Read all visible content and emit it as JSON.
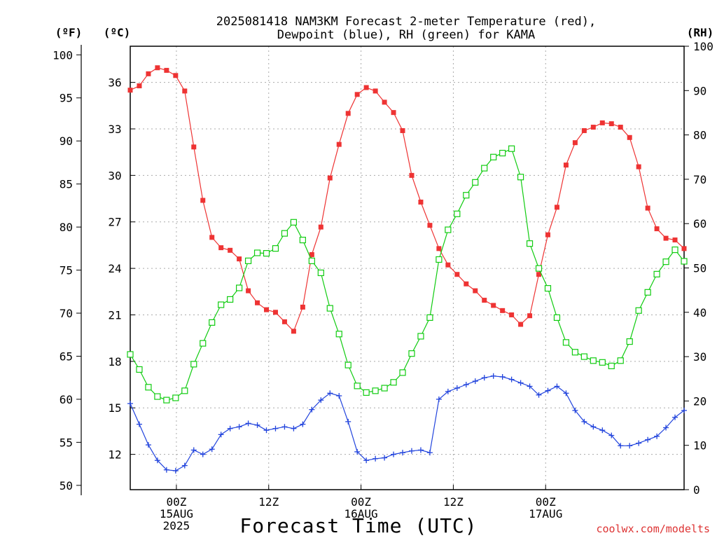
{
  "chart_data": {
    "type": "line",
    "title_line1": "2025081418 NAM3KM Forecast 2-meter Temperature (red),",
    "title_line2": "Dewpoint (blue), RH (green) for KAMA",
    "xlabel": "Forecast Time (UTC)",
    "watermark": "coolwx.com/modelts",
    "axis_units": {
      "f": "(ºF)",
      "c": "(ºC)",
      "rh": "(RH)"
    },
    "x_range_hours": [
      0,
      72
    ],
    "x_ticks": [
      {
        "hour": 6,
        "lines": [
          "00Z",
          "15AUG",
          "2025"
        ]
      },
      {
        "hour": 18,
        "lines": [
          "12Z"
        ]
      },
      {
        "hour": 30,
        "lines": [
          "00Z",
          "16AUG"
        ]
      },
      {
        "hour": 42,
        "lines": [
          "12Z"
        ]
      },
      {
        "hour": 54,
        "lines": [
          "00Z",
          "17AUG"
        ]
      }
    ],
    "y_left_f": {
      "range": [
        49.5,
        101
      ],
      "ticks": [
        50,
        55,
        60,
        65,
        70,
        75,
        80,
        85,
        90,
        95,
        100
      ]
    },
    "y_left_c": {
      "ticks": [
        12,
        15,
        18,
        21,
        24,
        27,
        30,
        33,
        36
      ]
    },
    "y_right_rh": {
      "range": [
        0,
        100
      ],
      "ticks": [
        0,
        10,
        20,
        30,
        40,
        50,
        60,
        70,
        80,
        90,
        100
      ]
    },
    "grid": true,
    "series": [
      {
        "name": "2-meter Temperature (red)",
        "unit": "F",
        "color": "#ee3333",
        "marker": "filled-square",
        "values": [
          95.9,
          96.4,
          97.8,
          98.5,
          98.2,
          97.6,
          95.8,
          89.3,
          83.1,
          78.8,
          77.6,
          77.3,
          76.3,
          72.6,
          71.2,
          70.4,
          70.1,
          69.0,
          67.9,
          70.7,
          76.8,
          80.0,
          85.7,
          89.6,
          93.2,
          95.4,
          96.2,
          95.8,
          94.5,
          93.3,
          91.2,
          86.0,
          82.9,
          80.2,
          77.5,
          75.6,
          74.5,
          73.4,
          72.6,
          71.5,
          70.9,
          70.3,
          69.8,
          68.7,
          69.7,
          74.5,
          79.1,
          82.3,
          87.2,
          89.8,
          91.2,
          91.6,
          92.1,
          92.0,
          91.6,
          90.4,
          87.0,
          82.2,
          79.8,
          78.7,
          78.5,
          77.5
        ]
      },
      {
        "name": "Dewpoint (blue)",
        "unit": "F",
        "color": "#2244dd",
        "marker": "plus",
        "values": [
          59.5,
          57.1,
          54.7,
          52.9,
          51.8,
          51.7,
          52.3,
          54.1,
          53.6,
          54.2,
          55.9,
          56.6,
          56.8,
          57.2,
          57.0,
          56.4,
          56.6,
          56.8,
          56.6,
          57.1,
          58.8,
          59.9,
          60.7,
          60.4,
          57.4,
          53.9,
          52.9,
          53.1,
          53.2,
          53.6,
          53.8,
          54.0,
          54.1,
          53.8,
          60.0,
          60.9,
          61.3,
          61.7,
          62.1,
          62.5,
          62.7,
          62.6,
          62.3,
          61.9,
          61.5,
          60.5,
          61.0,
          61.5,
          60.7,
          58.7,
          57.4,
          56.8,
          56.4,
          55.8,
          54.6,
          54.6,
          54.9,
          55.3,
          55.7,
          56.7,
          57.9,
          58.7
        ]
      },
      {
        "name": "RH (green)",
        "unit": "%",
        "color": "#11cc11",
        "marker": "open-square",
        "values": [
          30.5,
          27.1,
          23.1,
          21.0,
          20.2,
          20.7,
          22.3,
          28.3,
          33.0,
          37.7,
          41.7,
          42.9,
          45.5,
          51.6,
          53.4,
          53.3,
          54.4,
          57.8,
          60.3,
          56.3,
          51.6,
          48.9,
          40.9,
          35.1,
          28.1,
          23.4,
          21.9,
          22.3,
          22.9,
          24.2,
          26.4,
          30.7,
          34.6,
          38.8,
          51.9,
          58.6,
          62.2,
          66.4,
          69.3,
          72.5,
          75.0,
          75.9,
          76.9,
          70.5,
          55.5,
          49.9,
          45.4,
          38.8,
          33.2,
          31.0,
          30.0,
          29.1,
          28.7,
          27.9,
          29.1,
          33.4,
          40.4,
          44.5,
          48.6,
          51.4,
          54.1,
          51.5
        ]
      }
    ]
  }
}
